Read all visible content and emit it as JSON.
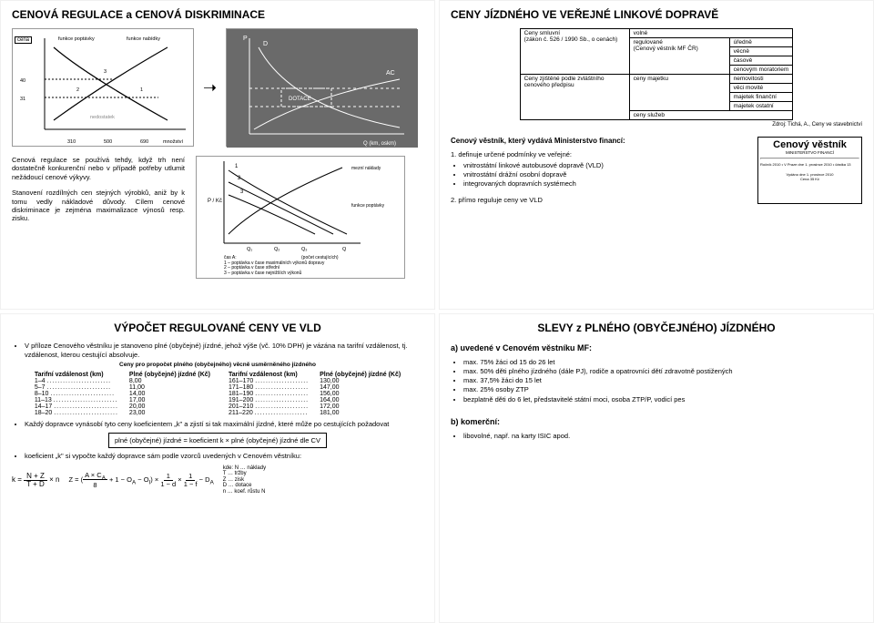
{
  "tl": {
    "title": "CENOVÁ REGULACE  a  CENOVÁ DISKRIMINACE",
    "chart1": {
      "y_label": "cena",
      "curve_left": "funkce poptávky",
      "curve_right": "funkce nabídky",
      "y_ticks": [
        "40",
        "31"
      ],
      "cross_labels": [
        "3",
        "2",
        "1"
      ],
      "bottom_label": "nedostatek",
      "x_ticks": [
        "310",
        "500",
        "690"
      ],
      "x_label": "množství"
    },
    "para1": "Cenová regulace se používá tehdy, když trh není dostatečně konkurenční nebo v případě potřeby utlumit nežádoucí cenové výkyvy.",
    "para2": "Stanovení rozdílných cen stejných výrobků, aniž by k tomu vedly nákladové důvody. Cílem cenové diskriminace je zejména maximalizace výnosů resp. zisku.",
    "chart2": {
      "y_label": "P",
      "curves": [
        "D",
        "DOTACE",
        "AC"
      ],
      "x_label": "Q (km, oskm)"
    },
    "chart3": {
      "y_label": "P / Kč",
      "right_labels": [
        "mezní náklady",
        "funkce poptávky"
      ],
      "x_ticks": [
        "Q₁",
        "Q₂",
        "Q₃",
        "Q"
      ],
      "x_sub": "(počet cestujících)",
      "legend_title": "čas A:",
      "legend_items": [
        "1 – poptávka v čase maximálních výkonů dopravy",
        "2 – poptávka v čase střední",
        "3 – poptávka v čase nejnižších výkonů"
      ]
    }
  },
  "tr": {
    "title": "CENY JÍZDNÉHO VE VEŘEJNÉ LINKOVÉ DOPRAVĚ",
    "table": {
      "r1c1": "Ceny smluvní\n(zákon č. 526 / 1990 Sb., o cenách)",
      "r1c2": "volné",
      "r2c2": "regulované\n(Cenový věstník MF ČR)",
      "r2c3": [
        "úředně",
        "věcně",
        "časově",
        "cenovým moratoriem"
      ],
      "r3c1": "Ceny zjištěné podle zvláštního cenového předpisu",
      "r3c2": "ceny majetku",
      "r3c3": [
        "nemovitosti",
        "věci movité",
        "majetek finanční",
        "majetek ostatní"
      ],
      "r4c2": "ceny služeb"
    },
    "source": "Zdroj: Tichá, A., Ceny ve stavebnictví",
    "sub_heading": "Cenový věstník, který vydává Ministerstvo financí:",
    "point1": "1. definuje určené podmínky ve veřejné:",
    "point1_items": [
      "vnitrostátní linkové autobusové dopravě (VLD)",
      "vnitrostátní drážní osobní dopravě",
      "integrovaných dopravních systémech"
    ],
    "point2": "2. přímo reguluje ceny ve VLD",
    "vestnik": {
      "title": "Cenový věstník",
      "sub": "MINISTERSTVO FINANCÍ",
      "line1": "Ročník 2010 • V Praze dne 1. prosince 2010 • částka 13",
      "line2": "Vydáno dne 1. prosince 2010",
      "line3": "Cena 35 Kč"
    }
  },
  "bl": {
    "title": "VÝPOČET REGULOVANÉ CENY VE VLD",
    "bullet1": "V příloze Cenového věstníku je stanoveno plné (obyčejné) jízdné, jehož výše (vč. 10% DPH) je vázána na tarifní vzdálenost, tj. vzdálenost, kterou cestující absolvuje.",
    "fare_title": "Ceny pro propočet plného (obyčejného) věcně usměrněného jízdného",
    "fare_headers": [
      "Tarifní vzdálenost (km)",
      "Plné (obyčejné) jízdné (Kč)",
      "Tarifní vzdálenost (km)",
      "Plné (obyčejné) jízdné (Kč)"
    ],
    "fare_rows": [
      [
        "1–4",
        "8,00",
        "161–170",
        "130,00"
      ],
      [
        "5–7",
        "11,00",
        "171–180",
        "147,00"
      ],
      [
        "8–10",
        "14,00",
        "181–190",
        "156,00"
      ],
      [
        "11–13",
        "17,00",
        "191–200",
        "164,00"
      ],
      [
        "14–17",
        "20,00",
        "201–210",
        "172,00"
      ],
      [
        "18–20",
        "23,00",
        "211–220",
        "181,00"
      ]
    ],
    "bullet2": "Každý dopravce vynásobí tyto ceny koeficientem „k\" a zjistí si tak maximální jízdné, které může po cestujících požadovat",
    "formula_text": "plné (obyčejné) jízdné = koeficient k × plné (obyčejné) jízdné dle CV",
    "bullet3": "koeficient „k\" si vypočte každý dopravce sám podle vzorců uvedených v Cenovém věstníku:",
    "k_formula": "k = (N + Z) / (T + D) × n",
    "z_formula": "Z = ((A × C_A) / 8 + 1 − O_A − O_I) × 1/(1−d) × 1/(1−f) − D_A",
    "legend_title": "kde:",
    "legend": [
      "N … náklady",
      "T … tržby",
      "Z … zisk",
      "D … dotace",
      "n … koef. růstu N"
    ]
  },
  "br": {
    "title": "SLEVY z PLNÉHO (OBYČEJNÉHO) JÍZDNÉHO",
    "sec_a": "a) uvedené v Cenovém věstníku MF:",
    "a_items": [
      "max. 75% žáci od 15 do 26 let",
      "max. 50% děti plného jízdného (dále PJ), rodiče a opatrovníci dětí zdravotně postižených",
      "max. 37,5% žáci do 15 let",
      "max. 25% osoby ZTP",
      "bezplatně děti do 6 let, představitelé státní moci, osoba ZTP/P, vodicí pes"
    ],
    "sec_b": "b) komerční:",
    "b_items": [
      "libovolné, např. na karty ISIC apod."
    ]
  }
}
